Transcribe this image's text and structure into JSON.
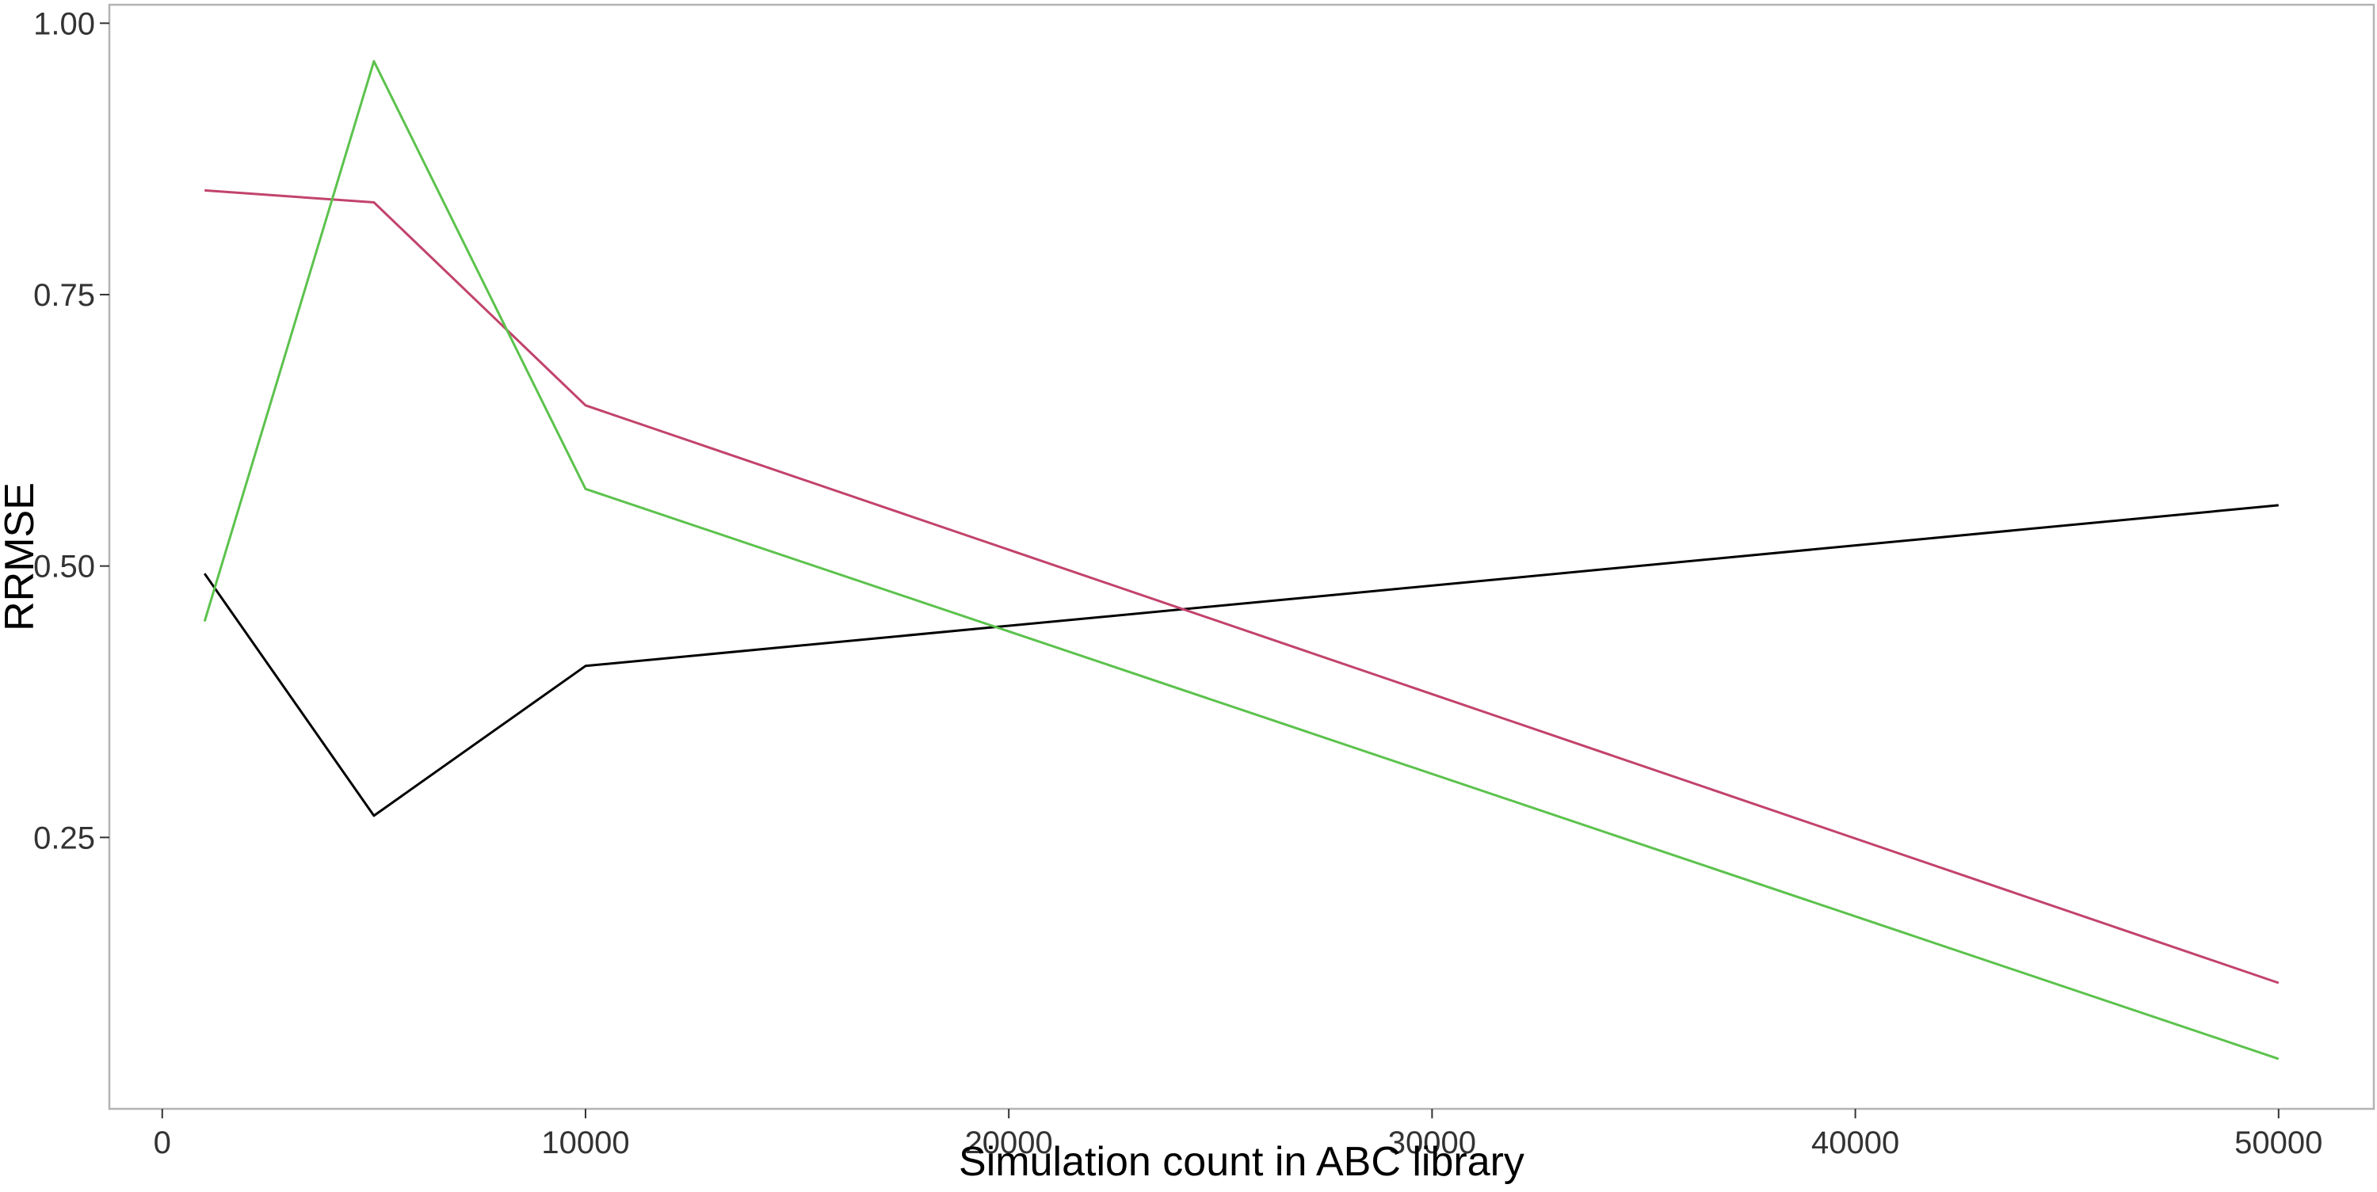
{
  "chart_data": {
    "type": "line",
    "title": "",
    "xlabel": "Simulation count in ABC library",
    "ylabel": "RRMSE",
    "xlim": [
      -1250,
      52250
    ],
    "ylim": [
      0,
      1.017
    ],
    "x_ticks": [
      0,
      10000,
      20000,
      30000,
      40000,
      50000
    ],
    "x_tick_labels": [
      "0",
      "10000",
      "20000",
      "30000",
      "40000",
      "50000"
    ],
    "y_ticks": [
      0.25,
      0.5,
      0.75,
      1.0
    ],
    "y_tick_labels": [
      "0.25",
      "0.50",
      "0.75",
      "1.00"
    ],
    "grid": false,
    "legend": "none",
    "x": [
      1000,
      5000,
      10000,
      50000
    ],
    "series": [
      {
        "color": "#000000",
        "values": [
          0.493,
          0.27,
          0.408,
          0.556
        ]
      },
      {
        "color": "#c2436b",
        "values": [
          0.846,
          0.835,
          0.648,
          0.116
        ]
      },
      {
        "color": "#5cc24d",
        "values": [
          0.449,
          0.965,
          0.571,
          0.046
        ]
      }
    ]
  }
}
